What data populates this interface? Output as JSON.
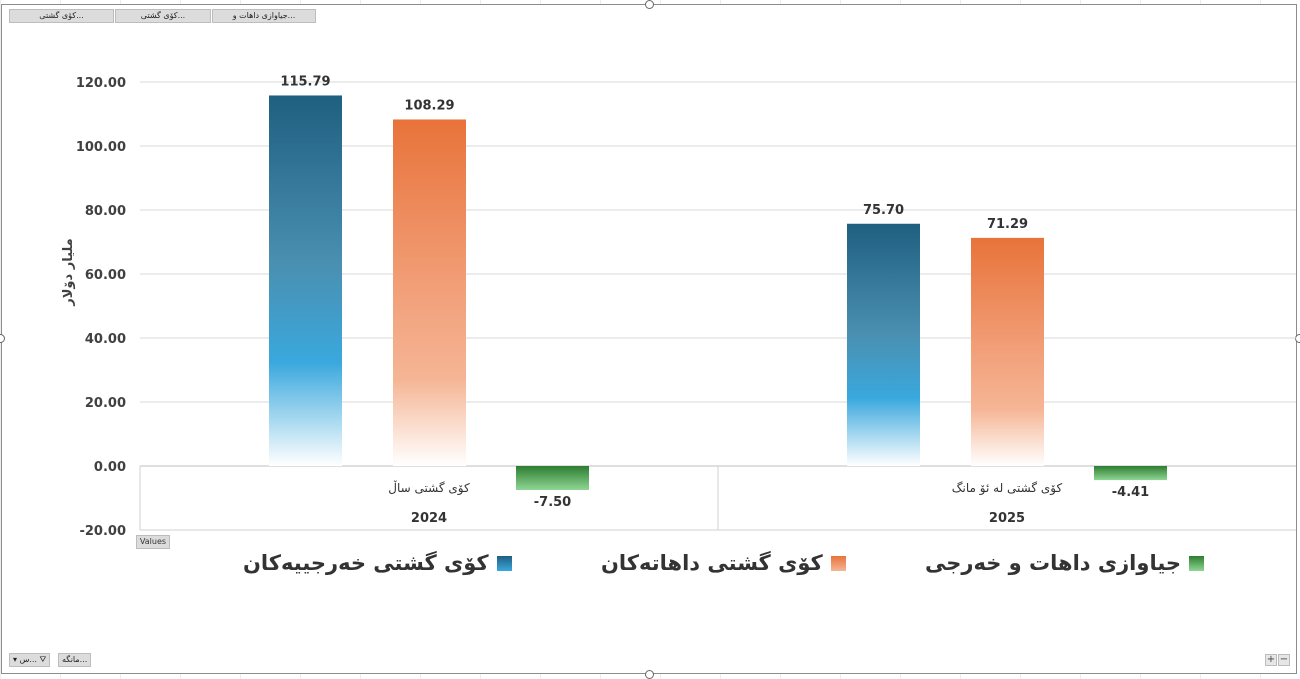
{
  "field_buttons": {
    "values_label": "Values",
    "top": [
      "جیاوازی داهات و...",
      "کۆی گشتی...",
      "کۆی گشتی..."
    ],
    "bottom_filter": "مانگە...",
    "bottom_sort": "س..."
  },
  "zoom": {
    "plus": "+",
    "minus": "−"
  },
  "colors": {
    "expense_top": "#1f5f80",
    "expense_mid": "#3aa8dd",
    "expense_bottom": "#ffffff",
    "income_top": "#e8733a",
    "income_mid": "#f2a07a",
    "income_bottom": "#ffffff",
    "diff_top": "#2e7d32",
    "diff_bottom": "#8fd694",
    "grid": "#d9d9d9",
    "axis_text": "#404040"
  },
  "legend": [
    {
      "label": "کۆی گشتی خەرجییەکان",
      "color_key": "expense"
    },
    {
      "label": "کۆی گشتی داهاتەکان",
      "color_key": "income"
    },
    {
      "label": "جیاوازی داهات و خەرجی",
      "color_key": "diff"
    }
  ],
  "chart_data": {
    "type": "bar",
    "title": "",
    "ylabel": "ملیار دۆلار",
    "ylim": [
      -20,
      120
    ],
    "yticks": [
      -20,
      0,
      20,
      40,
      60,
      80,
      100,
      120
    ],
    "tick_format_decimals": 2,
    "categories": [
      {
        "label": "کۆی گشتی ساڵ",
        "group": "2024"
      },
      {
        "label": "کۆی گشتی لە ئۆ مانگ",
        "group": "2025"
      }
    ],
    "series": [
      {
        "name": "کۆی گشتی خەرجییەکان",
        "values": [
          115.79,
          75.7
        ],
        "labels": [
          "115.79",
          "75.70"
        ]
      },
      {
        "name": "کۆی گشتی داهاتەکان",
        "values": [
          108.29,
          71.29
        ],
        "labels": [
          "108.29",
          "71.29"
        ]
      },
      {
        "name": "جیاوازی داهات و خەرجی",
        "values": [
          -7.5,
          -4.41
        ],
        "labels": [
          "-7.50",
          "-4.41"
        ]
      }
    ],
    "grid": true,
    "legend_position": "bottom"
  }
}
